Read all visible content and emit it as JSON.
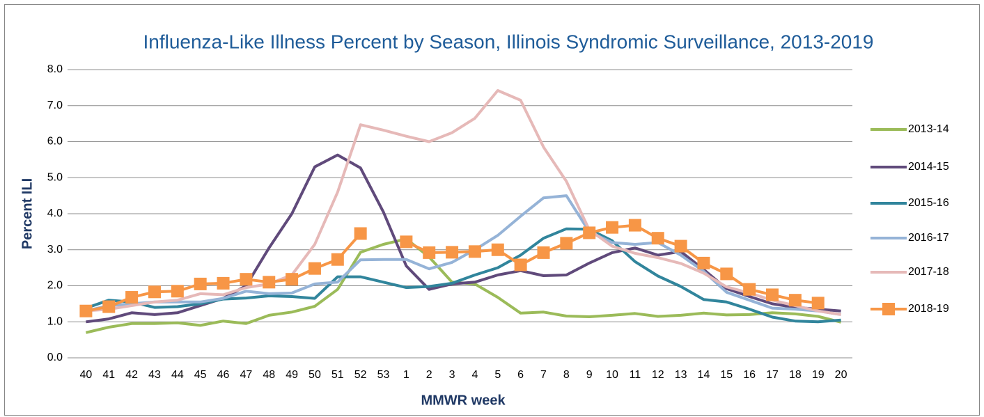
{
  "chart_data": {
    "type": "line",
    "title": "Influenza-Like Illness Percent by Season, Illinois Syndromic Surveillance, 2013-2019",
    "x_label": "MMWR week",
    "y_label": "Percent ILI",
    "categories": [
      "40",
      "41",
      "42",
      "43",
      "44",
      "45",
      "46",
      "47",
      "48",
      "49",
      "50",
      "51",
      "52",
      "53",
      "1",
      "2",
      "3",
      "4",
      "5",
      "6",
      "7",
      "8",
      "9",
      "10",
      "11",
      "12",
      "13",
      "14",
      "15",
      "16",
      "17",
      "18",
      "19",
      "20"
    ],
    "ylim": [
      0,
      8
    ],
    "yticks": [
      {
        "value": 0,
        "label": "0.0"
      },
      {
        "value": 1,
        "label": "1.0"
      },
      {
        "value": 2,
        "label": "2.0"
      },
      {
        "value": 3,
        "label": "3.0"
      },
      {
        "value": 4,
        "label": "4.0"
      },
      {
        "value": 5,
        "label": "5.0"
      },
      {
        "value": 6,
        "label": "6.0"
      },
      {
        "value": 7,
        "label": "7.0"
      },
      {
        "value": 8,
        "label": "8.0"
      }
    ],
    "grid": true,
    "legend": "right",
    "series": [
      {
        "name": "2013-14",
        "color": "#9bbb59",
        "values": [
          0.7,
          0.85,
          0.95,
          0.95,
          0.97,
          0.9,
          1.02,
          0.95,
          1.18,
          1.27,
          1.43,
          1.9,
          2.93,
          3.15,
          3.3,
          2.8,
          2.1,
          2.05,
          1.68,
          1.24,
          1.27,
          1.16,
          1.14,
          1.18,
          1.23,
          1.15,
          1.18,
          1.24,
          1.19,
          1.2,
          1.25,
          1.22,
          1.15,
          0.99
        ]
      },
      {
        "name": "2014-15",
        "color": "#604a7b",
        "values": [
          1.0,
          1.08,
          1.25,
          1.2,
          1.25,
          1.45,
          1.65,
          2.0,
          3.05,
          4.0,
          5.3,
          5.63,
          5.27,
          4.05,
          2.55,
          1.9,
          2.05,
          2.1,
          2.3,
          2.42,
          2.28,
          2.3,
          2.63,
          2.92,
          3.05,
          2.85,
          2.95,
          2.45,
          1.92,
          1.7,
          1.5,
          1.4,
          1.35,
          1.3
        ]
      },
      {
        "name": "2015-16",
        "color": "#31859c",
        "values": [
          1.38,
          1.6,
          1.55,
          1.4,
          1.42,
          1.5,
          1.63,
          1.66,
          1.72,
          1.7,
          1.65,
          2.25,
          2.25,
          2.1,
          1.95,
          1.98,
          2.07,
          2.3,
          2.5,
          2.85,
          3.32,
          3.58,
          3.57,
          3.25,
          2.67,
          2.27,
          1.98,
          1.62,
          1.55,
          1.35,
          1.13,
          1.02,
          1.0,
          1.05
        ]
      },
      {
        "name": "2016-17",
        "color": "#95b3d7",
        "values": [
          1.3,
          1.45,
          1.5,
          1.55,
          1.55,
          1.55,
          1.65,
          1.85,
          1.78,
          1.8,
          2.05,
          2.1,
          2.72,
          2.73,
          2.73,
          2.47,
          2.65,
          3.0,
          3.4,
          3.93,
          4.44,
          4.5,
          3.5,
          3.2,
          3.15,
          3.2,
          2.85,
          2.4,
          1.82,
          1.6,
          1.38,
          1.35,
          1.3,
          1.2
        ]
      },
      {
        "name": "2017-18",
        "color": "#e6b9b8",
        "values": [
          1.3,
          1.35,
          1.45,
          1.55,
          1.6,
          1.78,
          1.75,
          1.95,
          2.05,
          2.3,
          3.15,
          4.6,
          6.47,
          6.32,
          6.15,
          6.0,
          6.25,
          6.65,
          7.42,
          7.15,
          5.85,
          4.9,
          3.55,
          3.1,
          2.9,
          2.78,
          2.62,
          2.35,
          1.97,
          1.8,
          1.6,
          1.45,
          1.3,
          1.2
        ]
      },
      {
        "name": "2018-19",
        "color": "#f79646",
        "marker": "square",
        "values": [
          1.3,
          1.42,
          1.68,
          1.83,
          1.85,
          2.05,
          2.07,
          2.18,
          2.1,
          2.18,
          2.48,
          2.73,
          3.45,
          null,
          3.22,
          2.92,
          2.93,
          2.95,
          3.0,
          2.58,
          2.92,
          3.18,
          3.47,
          3.62,
          3.68,
          3.32,
          3.1,
          2.63,
          2.33,
          1.9,
          1.75,
          1.6,
          1.52,
          null
        ]
      }
    ]
  }
}
